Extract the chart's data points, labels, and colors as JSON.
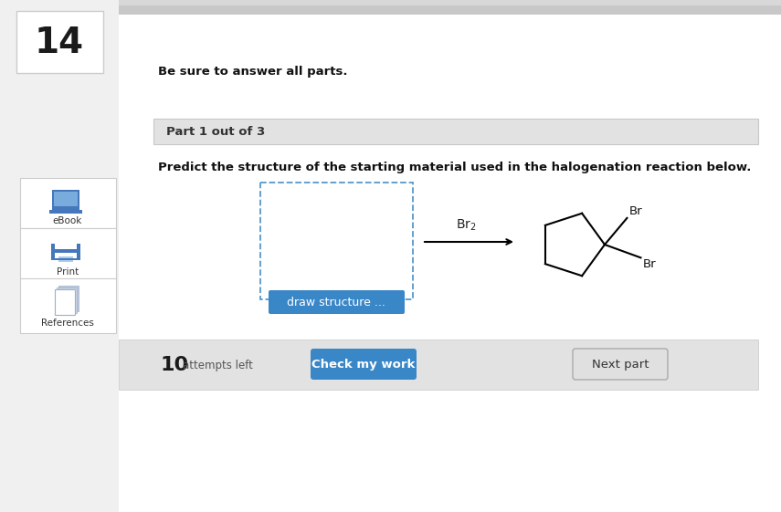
{
  "bg_color": "#f0f0f0",
  "white": "#ffffff",
  "page_number": "14",
  "be_sure_text": "Be sure to answer all parts.",
  "part_label": "Part 1 out of 3",
  "part_label_bg": "#e2e2e2",
  "question_text": "Predict the structure of the starting material used in the halogenation reaction below.",
  "attempts_text": "10",
  "attempts_label": "attempts left",
  "check_btn_text": "Check my work",
  "check_btn_color": "#3a87c8",
  "next_btn_text": "Next part",
  "next_btn_color": "#e0e0e0",
  "draw_btn_text": "draw structure ...",
  "draw_btn_color": "#3a87c8",
  "bottom_bar_bg": "#e2e2e2",
  "top_bar_color": "#b0b0b0",
  "ebook_color": "#4477bb",
  "print_color": "#4477bb",
  "sidebar_border": "#cccccc",
  "text_dark": "#111111",
  "text_mid": "#333333",
  "text_gray": "#555555"
}
